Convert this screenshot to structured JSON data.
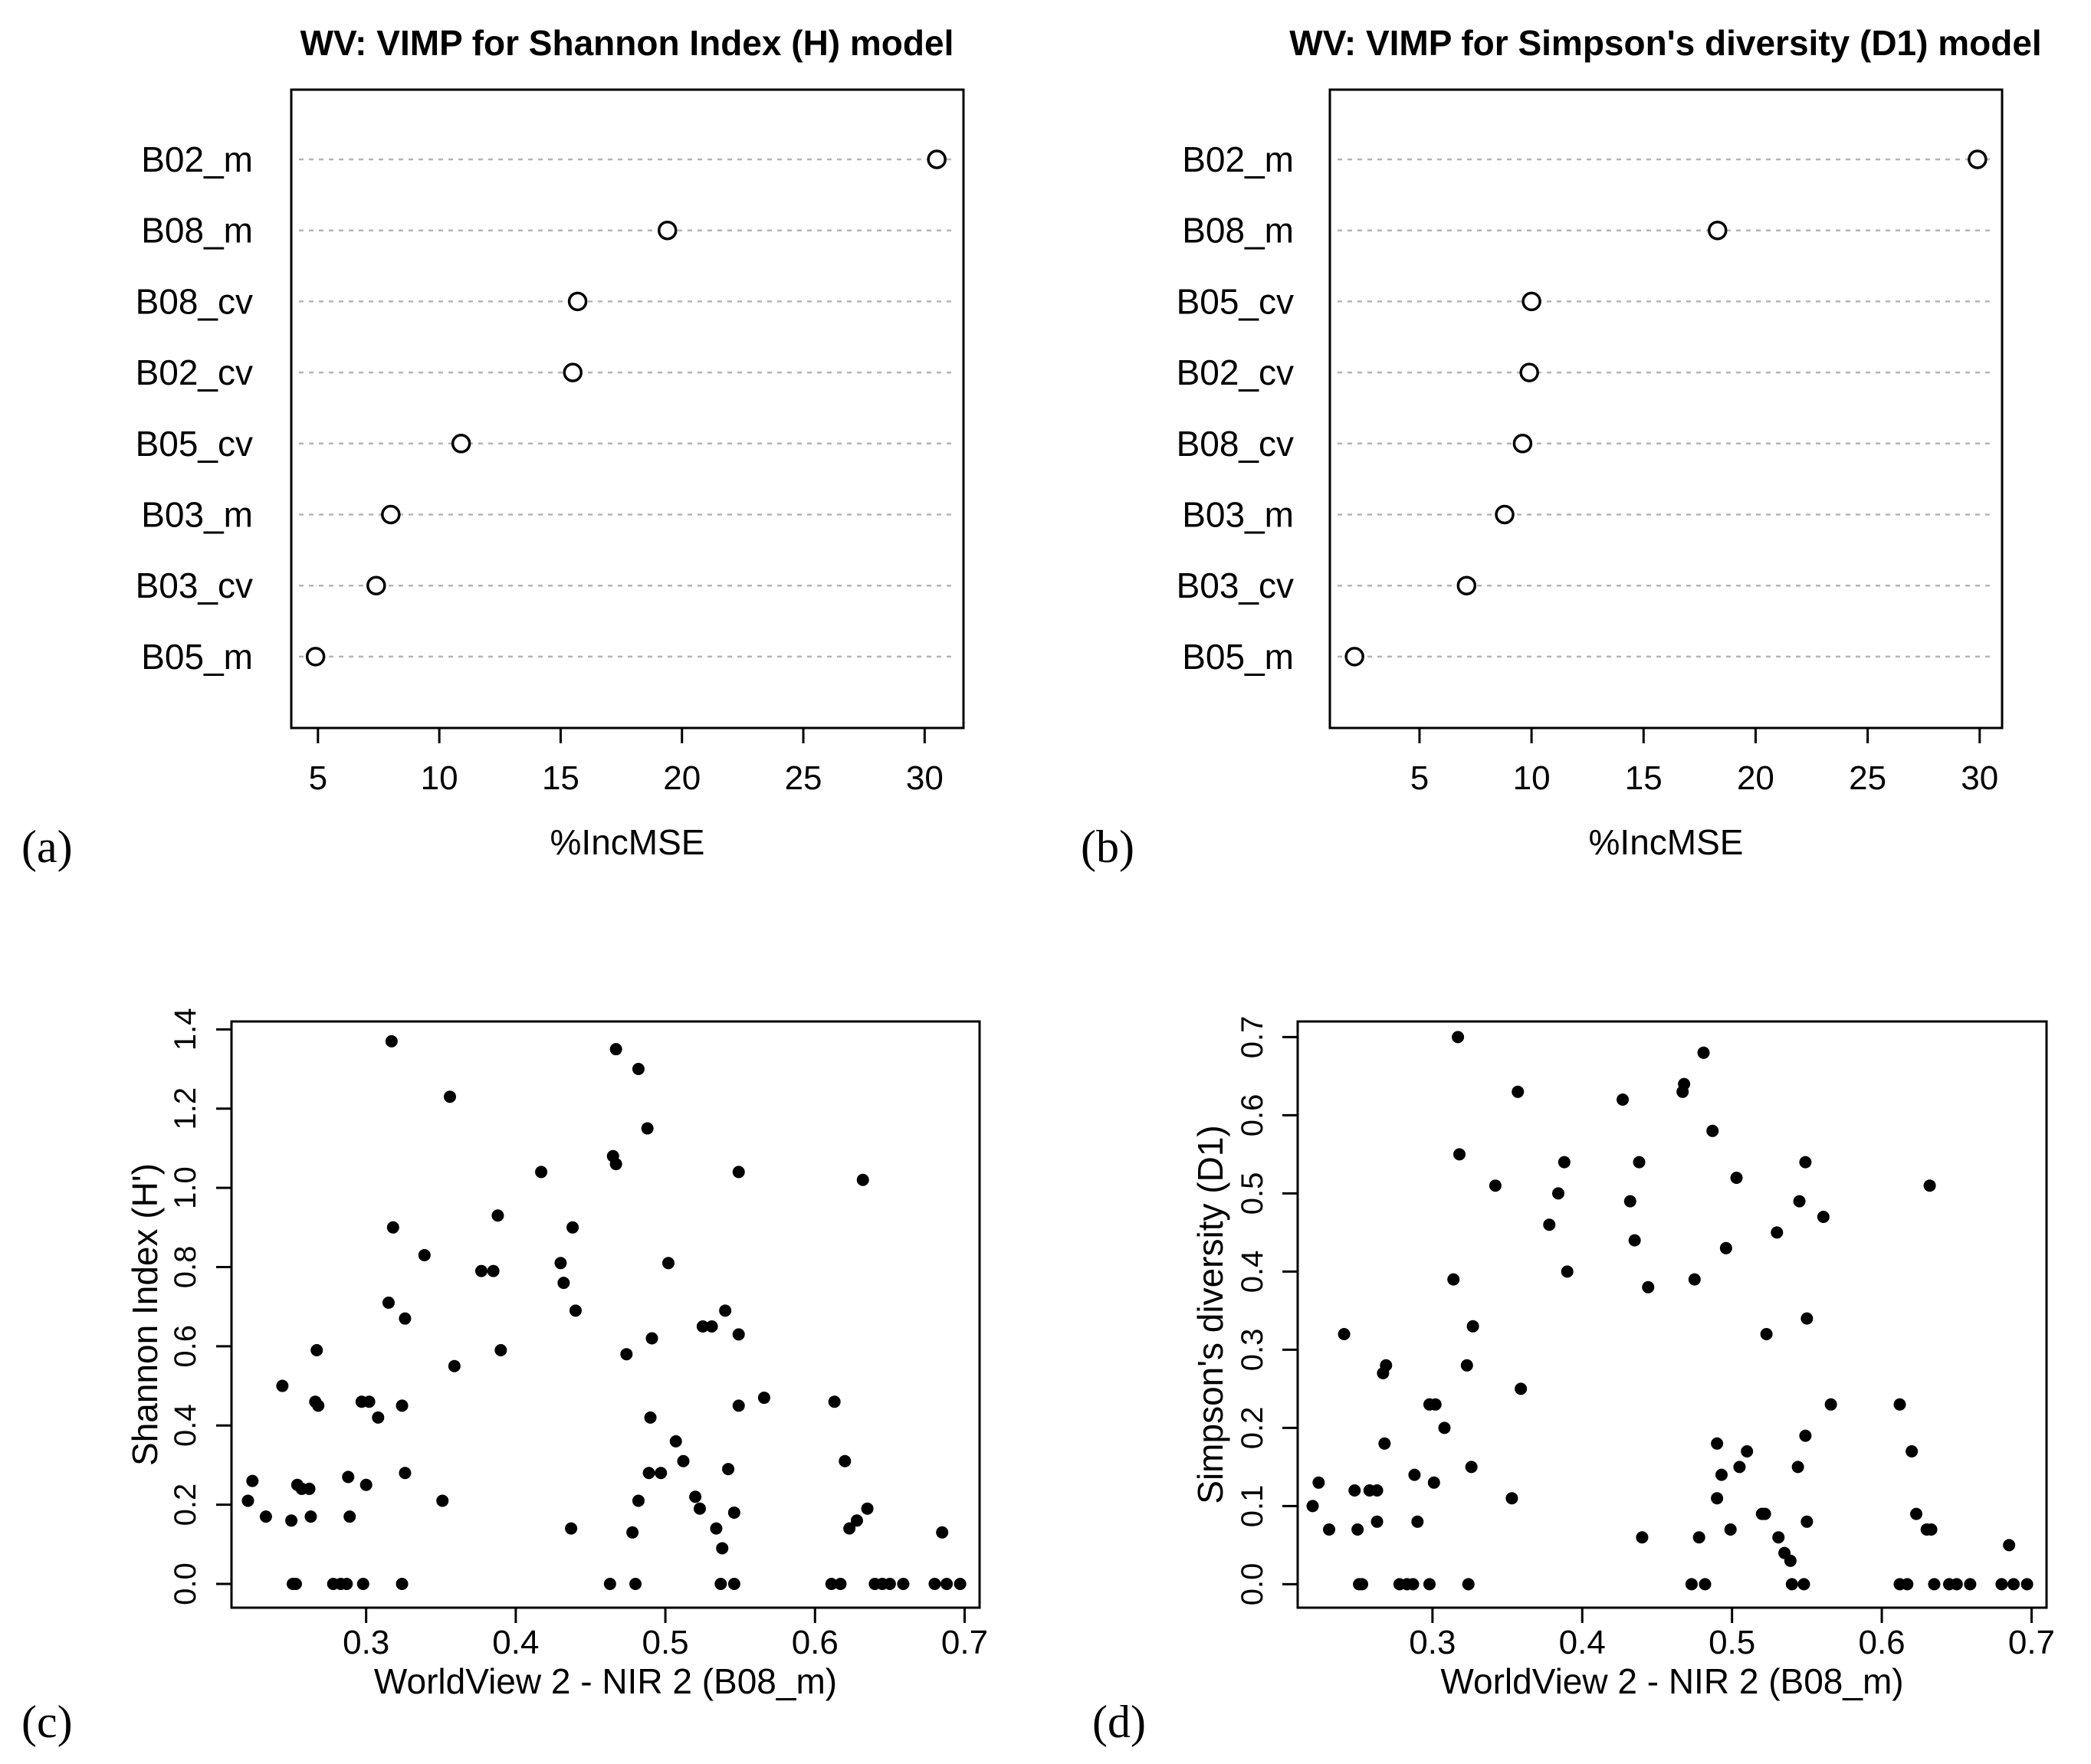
{
  "chart_data": [
    {
      "id": "a",
      "type": "scatter",
      "subtype": "dotchart",
      "panel_label": "(a)",
      "title": "WV: VIMP for Shannon Index (H) model",
      "xlabel": "%IncMSE",
      "ylabel": "",
      "xlim": [
        3.9,
        31.6
      ],
      "xticks": [
        5,
        10,
        15,
        20,
        25,
        30
      ],
      "grid": "dotted horizontal per variable",
      "categories": [
        "B02_m",
        "B08_m",
        "B08_cv",
        "B02_cv",
        "B05_cv",
        "B03_m",
        "B03_cv",
        "B05_m"
      ],
      "values": [
        30.5,
        19.4,
        15.7,
        15.5,
        10.9,
        8.0,
        7.4,
        4.9
      ]
    },
    {
      "id": "b",
      "type": "scatter",
      "subtype": "dotchart",
      "panel_label": "(b)",
      "title": "WV: VIMP for Simpson's diversity (D1) model",
      "xlabel": "%IncMSE",
      "ylabel": "",
      "xlim": [
        1.0,
        31.0
      ],
      "xticks": [
        5,
        10,
        15,
        20,
        25,
        30
      ],
      "grid": "dotted horizontal per variable",
      "categories": [
        "B02_m",
        "B08_m",
        "B05_cv",
        "B02_cv",
        "B08_cv",
        "B03_m",
        "B03_cv",
        "B05_m"
      ],
      "values": [
        29.9,
        18.3,
        10.0,
        9.9,
        9.6,
        8.8,
        7.1,
        2.1
      ]
    },
    {
      "id": "c",
      "type": "scatter",
      "panel_label": "(c)",
      "title": "",
      "xlabel": "WorldView 2 - NIR 2 (B08_m)",
      "ylabel": "Shannon Index (H')",
      "xlim": [
        0.21,
        0.71
      ],
      "ylim": [
        -0.06,
        1.42
      ],
      "xticks": [
        0.3,
        0.4,
        0.5,
        0.6,
        0.7
      ],
      "yticks": [
        0.0,
        0.2,
        0.4,
        0.6,
        0.8,
        1.0,
        1.2,
        1.4
      ],
      "ytick_labels": [
        "0.0",
        "0.2",
        "0.4",
        "0.6",
        "0.8",
        "1.0",
        "1.2",
        "1.4"
      ],
      "x": [
        0.317,
        0.356,
        0.467,
        0.482,
        0.488,
        0.465,
        0.467,
        0.417,
        0.549,
        0.632,
        0.388,
        0.318,
        0.339,
        0.438,
        0.43,
        0.377,
        0.385,
        0.432,
        0.502,
        0.315,
        0.326,
        0.44,
        0.549,
        0.54,
        0.525,
        0.531,
        0.474,
        0.491,
        0.267,
        0.359,
        0.39,
        0.351,
        0.244,
        0.266,
        0.268,
        0.297,
        0.302,
        0.324,
        0.308,
        0.549,
        0.566,
        0.613,
        0.49,
        0.507,
        0.512,
        0.62,
        0.489,
        0.497,
        0.542,
        0.326,
        0.288,
        0.3,
        0.224,
        0.254,
        0.257,
        0.262,
        0.482,
        0.52,
        0.523,
        0.546,
        0.221,
        0.233,
        0.263,
        0.25,
        0.289,
        0.437,
        0.478,
        0.534,
        0.538,
        0.623,
        0.628,
        0.635,
        0.685,
        0.251,
        0.253,
        0.278,
        0.283,
        0.287,
        0.298,
        0.324,
        0.463,
        0.48,
        0.537,
        0.546,
        0.611,
        0.617,
        0.64,
        0.645,
        0.65,
        0.659,
        0.68,
        0.688,
        0.697
      ],
      "y": [
        1.37,
        1.23,
        1.35,
        1.3,
        1.15,
        1.08,
        1.06,
        1.04,
        1.04,
        1.02,
        0.93,
        0.9,
        0.83,
        0.9,
        0.81,
        0.79,
        0.79,
        0.76,
        0.81,
        0.71,
        0.67,
        0.69,
        0.63,
        0.69,
        0.65,
        0.65,
        0.58,
        0.62,
        0.59,
        0.55,
        0.59,
        0.21,
        0.5,
        0.46,
        0.45,
        0.46,
        0.46,
        0.45,
        0.42,
        0.45,
        0.47,
        0.46,
        0.42,
        0.36,
        0.31,
        0.31,
        0.28,
        0.28,
        0.29,
        0.28,
        0.27,
        0.25,
        0.26,
        0.25,
        0.24,
        0.24,
        0.21,
        0.22,
        0.19,
        0.18,
        0.21,
        0.17,
        0.17,
        0.16,
        0.17,
        0.14,
        0.13,
        0.14,
        0.09,
        0.14,
        0.16,
        0.19,
        0.13,
        0.0,
        0.0,
        0.0,
        0.0,
        0.0,
        0.0,
        0.0,
        0.0,
        0.0,
        0.0,
        0.0,
        0.0,
        0.0,
        0.0,
        0.0,
        0.0,
        0.0,
        0.0,
        0.0,
        0.0
      ]
    },
    {
      "id": "d",
      "type": "scatter",
      "panel_label": "(d)",
      "title": "",
      "xlabel": "WorldView 2 - NIR 2 (B08_m)",
      "ylabel": "Simpson's diversity (D1)",
      "xlim": [
        0.21,
        0.71
      ],
      "ylim": [
        -0.03,
        0.72
      ],
      "xticks": [
        0.3,
        0.4,
        0.5,
        0.6,
        0.7
      ],
      "yticks": [
        0.0,
        0.1,
        0.2,
        0.3,
        0.4,
        0.5,
        0.6,
        0.7
      ],
      "ytick_labels": [
        "0.0",
        "0.1",
        "0.2",
        "0.3",
        "0.4",
        "0.5",
        "0.6",
        "0.7"
      ],
      "x": [
        0.317,
        0.481,
        0.467,
        0.468,
        0.357,
        0.427,
        0.487,
        0.318,
        0.342,
        0.438,
        0.384,
        0.388,
        0.503,
        0.432,
        0.549,
        0.545,
        0.53,
        0.561,
        0.632,
        0.378,
        0.496,
        0.435,
        0.39,
        0.444,
        0.475,
        0.314,
        0.327,
        0.55,
        0.523,
        0.241,
        0.267,
        0.269,
        0.323,
        0.359,
        0.566,
        0.298,
        0.302,
        0.612,
        0.308,
        0.549,
        0.268,
        0.62,
        0.49,
        0.505,
        0.51,
        0.326,
        0.544,
        0.288,
        0.224,
        0.301,
        0.248,
        0.258,
        0.263,
        0.493,
        0.499,
        0.49,
        0.353,
        0.52,
        0.522,
        0.55,
        0.22,
        0.231,
        0.29,
        0.263,
        0.25,
        0.633,
        0.63,
        0.531,
        0.535,
        0.623,
        0.539,
        0.44,
        0.478,
        0.685,
        0.251,
        0.253,
        0.278,
        0.283,
        0.287,
        0.298,
        0.324,
        0.473,
        0.482,
        0.54,
        0.548,
        0.612,
        0.617,
        0.635,
        0.645,
        0.65,
        0.659,
        0.68,
        0.688,
        0.697
      ],
      "y": [
        0.7,
        0.68,
        0.63,
        0.64,
        0.63,
        0.62,
        0.58,
        0.55,
        0.51,
        0.54,
        0.5,
        0.54,
        0.52,
        0.49,
        0.54,
        0.49,
        0.45,
        0.47,
        0.51,
        0.46,
        0.43,
        0.44,
        0.4,
        0.38,
        0.39,
        0.39,
        0.33,
        0.34,
        0.32,
        0.32,
        0.27,
        0.28,
        0.28,
        0.25,
        0.23,
        0.23,
        0.23,
        0.23,
        0.2,
        0.19,
        0.18,
        0.17,
        0.18,
        0.15,
        0.17,
        0.15,
        0.15,
        0.14,
        0.13,
        0.13,
        0.12,
        0.12,
        0.12,
        0.14,
        0.07,
        0.11,
        0.11,
        0.09,
        0.09,
        0.08,
        0.1,
        0.07,
        0.08,
        0.08,
        0.07,
        0.07,
        0.07,
        0.06,
        0.04,
        0.09,
        0.03,
        0.06,
        0.06,
        0.05,
        0.0,
        0.0,
        0.0,
        0.0,
        0.0,
        0.0,
        0.0,
        0.0,
        0.0,
        0.0,
        0.0,
        0.0,
        0.0,
        0.0,
        0.0,
        0.0,
        0.0,
        0.0,
        0.0,
        0.0
      ]
    }
  ]
}
